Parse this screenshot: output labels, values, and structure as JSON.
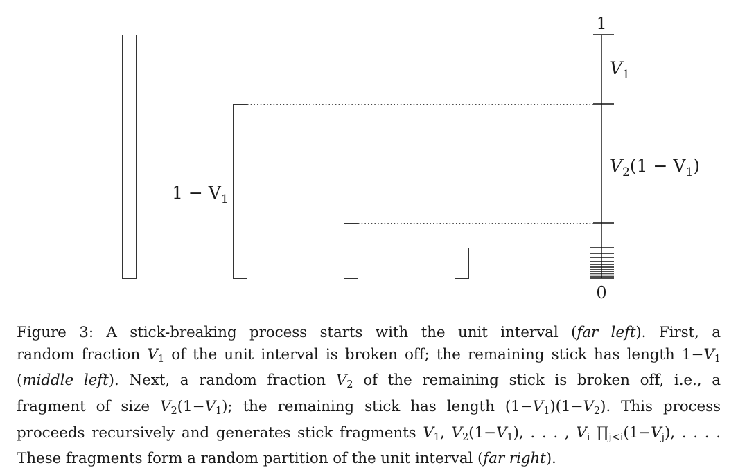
{
  "figure": {
    "axis": {
      "top_label": "1",
      "bottom_label": "0",
      "segment_labels": [
        {
          "base": "V",
          "sub": "1",
          "rest": ""
        },
        {
          "base": "V",
          "sub": "2",
          "rest": "(1 − V",
          "rest_sub": "1",
          "rest_end": ")"
        }
      ]
    },
    "stick_label": {
      "prefix": "1 − V",
      "sub": "1"
    }
  },
  "caption": {
    "lines": [
      [
        {
          "t": "Figure 3:   A stick-breaking process starts with the unit interval ("
        },
        {
          "t": "far left",
          "i": true
        },
        {
          "t": ").  First, a"
        }
      ],
      [
        {
          "t": "random fraction "
        },
        {
          "t": "V",
          "i": true
        },
        {
          "t": "1",
          "sub": true
        },
        {
          "t": " of the unit interval is broken off; the remaining stick has length 1−"
        },
        {
          "t": "V",
          "i": true
        },
        {
          "t": "1",
          "sub": true
        }
      ],
      [
        {
          "t": "("
        },
        {
          "t": "middle left",
          "i": true
        },
        {
          "t": ").  Next, a random fraction "
        },
        {
          "t": "V",
          "i": true
        },
        {
          "t": "2",
          "sub": true
        },
        {
          "t": " of the remaining stick is broken off, i.e., a"
        }
      ],
      [
        {
          "t": "fragment of size "
        },
        {
          "t": "V",
          "i": true
        },
        {
          "t": "2",
          "sub": true
        },
        {
          "t": "(1−"
        },
        {
          "t": "V",
          "i": true
        },
        {
          "t": "1",
          "sub": true
        },
        {
          "t": "); the remaining stick has length (1−"
        },
        {
          "t": "V",
          "i": true
        },
        {
          "t": "1",
          "sub": true
        },
        {
          "t": ")(1−"
        },
        {
          "t": "V",
          "i": true
        },
        {
          "t": "2",
          "sub": true
        },
        {
          "t": ").  This process"
        }
      ],
      [
        {
          "t": "proceeds recursively and generates stick fragments "
        },
        {
          "t": "V",
          "i": true
        },
        {
          "t": "1",
          "sub": true
        },
        {
          "t": ", "
        },
        {
          "t": "V",
          "i": true
        },
        {
          "t": "2",
          "sub": true
        },
        {
          "t": "(1−"
        },
        {
          "t": "V",
          "i": true
        },
        {
          "t": "1",
          "sub": true
        },
        {
          "t": "), . . . , "
        },
        {
          "t": "V",
          "i": true
        },
        {
          "t": "i",
          "sub": true,
          "i": true
        },
        {
          "t": " ∏"
        },
        {
          "t": "j<i",
          "sub": true,
          "i": true
        },
        {
          "t": "(1−"
        },
        {
          "t": "V",
          "i": true
        },
        {
          "t": "j",
          "sub": true,
          "i": true
        },
        {
          "t": "), . . . ."
        }
      ],
      [
        {
          "t": "These fragments form a random partition of the unit interval ("
        },
        {
          "t": "far right",
          "i": true
        },
        {
          "t": ")."
        }
      ]
    ]
  }
}
